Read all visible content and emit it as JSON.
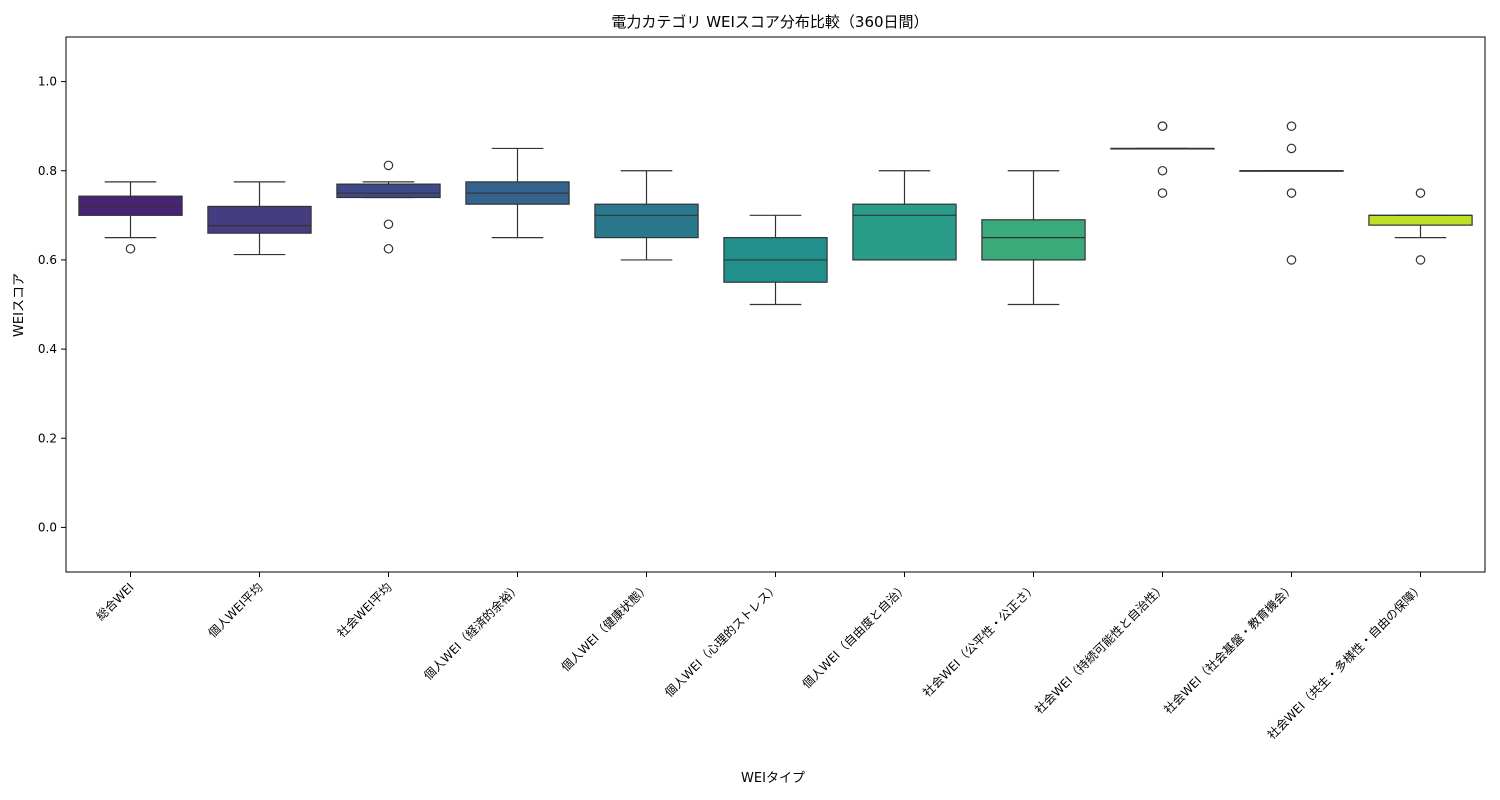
{
  "chart_data": {
    "type": "box",
    "title": "電力カテゴリ WEIスコア分布比較（360日間）",
    "xlabel": "WEIタイプ",
    "ylabel": "WEIスコア",
    "ylim": [
      -0.1,
      1.1
    ],
    "yticks": [
      0.0,
      0.2,
      0.4,
      0.6,
      0.8,
      1.0
    ],
    "ytick_labels": [
      "0.0",
      "0.2",
      "0.4",
      "0.6",
      "0.8",
      "1.0"
    ],
    "grid": false,
    "boxes": [
      {
        "label": "総合WEI",
        "whisker_low": 0.65,
        "q1": 0.7,
        "median": 0.718,
        "q3": 0.743,
        "whisker_high": 0.775,
        "outliers": [
          0.625
        ],
        "color": "#482475"
      },
      {
        "label": "個人WEI平均",
        "whisker_low": 0.612,
        "q1": 0.66,
        "median": 0.677,
        "q3": 0.72,
        "whisker_high": 0.775,
        "outliers": [],
        "color": "#453d7f"
      },
      {
        "label": "社会WEI平均",
        "whisker_low": 0.74,
        "q1": 0.74,
        "median": 0.75,
        "q3": 0.77,
        "whisker_high": 0.775,
        "outliers": [
          0.812,
          0.68,
          0.625
        ],
        "color": "#3e4989"
      },
      {
        "label": "個人WEI（経済的余裕）",
        "whisker_low": 0.65,
        "q1": 0.725,
        "median": 0.75,
        "q3": 0.775,
        "whisker_high": 0.85,
        "outliers": [],
        "color": "#33638d"
      },
      {
        "label": "個人WEI（健康状態）",
        "whisker_low": 0.6,
        "q1": 0.65,
        "median": 0.7,
        "q3": 0.725,
        "whisker_high": 0.8,
        "outliers": [],
        "color": "#2a788e"
      },
      {
        "label": "個人WEI（心理的ストレス）",
        "whisker_low": 0.5,
        "q1": 0.55,
        "median": 0.6,
        "q3": 0.65,
        "whisker_high": 0.7,
        "outliers": [],
        "color": "#21908d"
      },
      {
        "label": "個人WEI（自由度と自治）",
        "whisker_low": 0.6,
        "q1": 0.6,
        "median": 0.7,
        "q3": 0.725,
        "whisker_high": 0.8,
        "outliers": [],
        "color": "#2a9d8a"
      },
      {
        "label": "社会WEI（公平性・公正さ）",
        "whisker_low": 0.5,
        "q1": 0.6,
        "median": 0.65,
        "q3": 0.69,
        "whisker_high": 0.8,
        "outliers": [],
        "color": "#3aaa7a"
      },
      {
        "label": "社会WEI（持続可能性と自治性）",
        "whisker_low": 0.85,
        "q1": 0.85,
        "median": 0.85,
        "q3": 0.85,
        "whisker_high": 0.85,
        "outliers": [
          0.9,
          0.9,
          0.8,
          0.75
        ],
        "color": "#5ec962"
      },
      {
        "label": "社会WEI（社会基盤・教育機会）",
        "whisker_low": 0.8,
        "q1": 0.8,
        "median": 0.8,
        "q3": 0.8,
        "whisker_high": 0.8,
        "outliers": [
          0.9,
          0.85,
          0.75,
          0.6
        ],
        "color": "#8fd744"
      },
      {
        "label": "社会WEI（共生・多様性・自由の保障）",
        "whisker_low": 0.65,
        "q1": 0.678,
        "median": 0.7,
        "q3": 0.7,
        "whisker_high": 0.7,
        "outliers": [
          0.75,
          0.6
        ],
        "color": "#bddf26"
      }
    ]
  }
}
